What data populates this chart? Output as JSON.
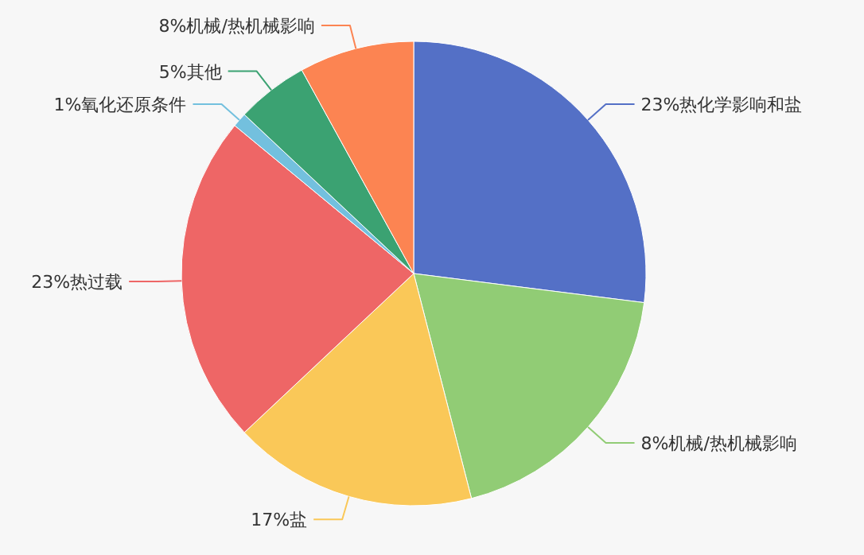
{
  "chart_data": {
    "type": "pie",
    "categories": [
      "23%热化学影响和盐",
      "8%机械/热机械影响",
      "17%盐",
      "23%热过载",
      "1%氧化还原条件",
      "5%其他",
      "8%机械/热机械影响"
    ],
    "values": [
      27,
      19,
      17,
      23,
      1,
      5,
      8
    ],
    "colors": [
      "#5470c6",
      "#91cc75",
      "#fac858",
      "#ee6666",
      "#73c0de",
      "#3ba272",
      "#fc8452"
    ]
  }
}
